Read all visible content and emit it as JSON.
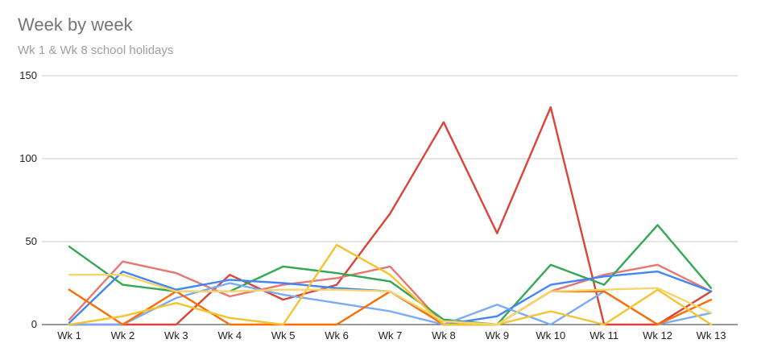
{
  "chart_data": {
    "type": "line",
    "title": "Week by week",
    "subtitle": "Wk 1 & Wk 8 school holidays",
    "xlabel": "",
    "ylabel": "",
    "categories": [
      "Wk 1",
      "Wk 2",
      "Wk 3",
      "Wk 4",
      "Wk 5",
      "Wk 6",
      "Wk 7",
      "Wk 8",
      "Wk 9",
      "Wk 10",
      "Wk 11",
      "Wk 12",
      "Wk 13"
    ],
    "ylim": [
      0,
      150
    ],
    "yticks": [
      0,
      50,
      100,
      150
    ],
    "grid": true,
    "legend": "none",
    "series": [
      {
        "color": "#db4437",
        "values": [
          0,
          0,
          0,
          30,
          15,
          24,
          67,
          122,
          55,
          131,
          0,
          0,
          20
        ]
      },
      {
        "color": "#e8776f",
        "values": [
          3,
          38,
          31,
          17,
          24,
          28,
          35,
          0,
          0,
          20,
          30,
          36,
          20
        ]
      },
      {
        "color": "#34a853",
        "values": [
          47,
          24,
          20,
          20,
          35,
          31,
          26,
          3,
          0,
          36,
          24,
          60,
          22
        ]
      },
      {
        "color": "#4285f4",
        "values": [
          1,
          32,
          21,
          27,
          25,
          22,
          20,
          0,
          5,
          24,
          29,
          32,
          20
        ]
      },
      {
        "color": "#7baaf7",
        "values": [
          0,
          0,
          16,
          25,
          18,
          13,
          8,
          0,
          12,
          0,
          20,
          0,
          7
        ]
      },
      {
        "color": "#ff6d01",
        "values": [
          21,
          0,
          20,
          0,
          0,
          0,
          20,
          0,
          0,
          20,
          20,
          0,
          15
        ]
      },
      {
        "color": "#f4c430",
        "values": [
          0,
          5,
          13,
          4,
          0,
          48,
          30,
          0,
          0,
          8,
          0,
          21,
          0
        ]
      },
      {
        "color": "#f6d66b",
        "values": [
          30,
          30,
          20,
          20,
          21,
          21,
          20,
          2,
          0,
          20,
          21,
          22,
          7
        ]
      }
    ]
  }
}
